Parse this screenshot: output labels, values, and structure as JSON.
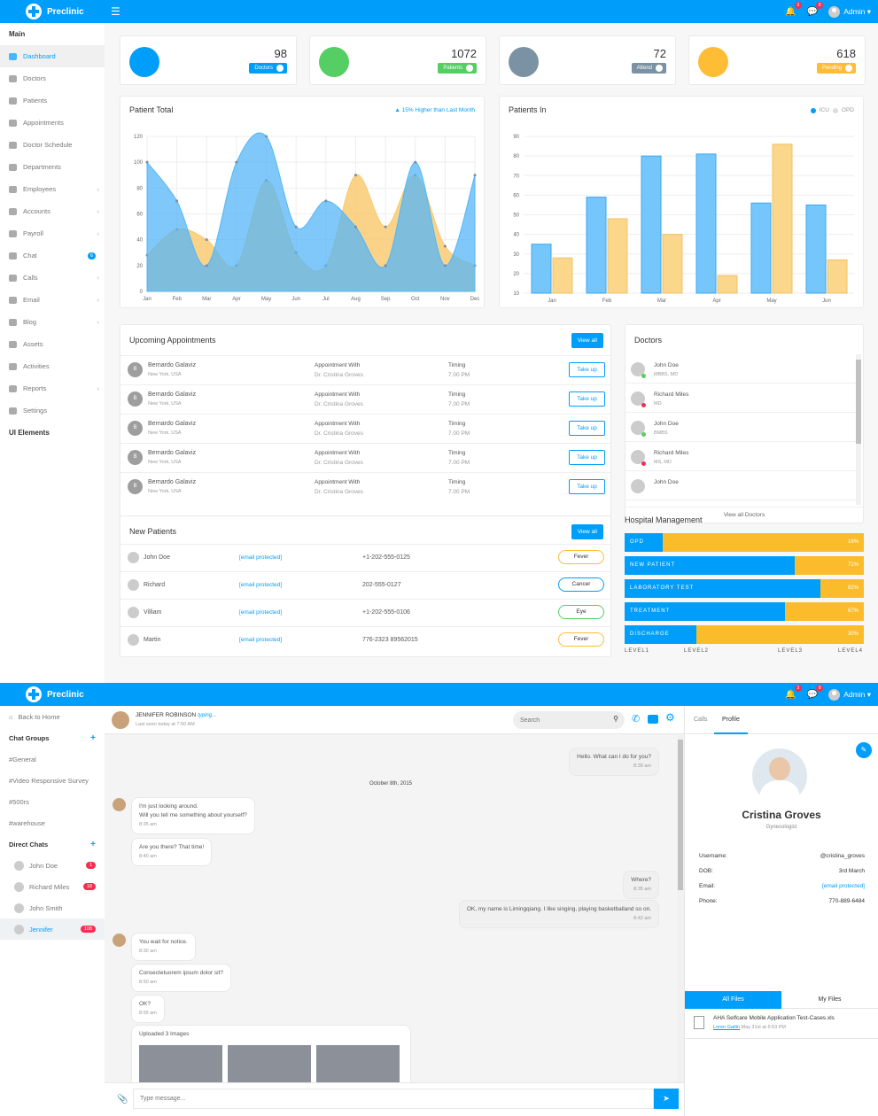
{
  "app": {
    "name": "Preclinic",
    "admin_label": "Admin",
    "notif_count": "3",
    "msg_count": "8"
  },
  "sidebar": {
    "main_label": "Main",
    "items": [
      {
        "label": "Dashboard",
        "active": true
      },
      {
        "label": "Doctors"
      },
      {
        "label": "Patients"
      },
      {
        "label": "Appointments"
      },
      {
        "label": "Doctor Schedule"
      },
      {
        "label": "Departments"
      },
      {
        "label": "Employees",
        "arrow": true
      },
      {
        "label": "Accounts",
        "arrow": true
      },
      {
        "label": "Payroll",
        "arrow": true
      },
      {
        "label": "Chat",
        "badge": "6"
      },
      {
        "label": "Calls",
        "arrow": true
      },
      {
        "label": "Email",
        "arrow": true
      },
      {
        "label": "Blog",
        "arrow": true
      },
      {
        "label": "Assets"
      },
      {
        "label": "Activities"
      },
      {
        "label": "Reports",
        "arrow": true
      },
      {
        "label": "Settings"
      }
    ],
    "ui_label": "UI Elements"
  },
  "stats": [
    {
      "value": "98",
      "label": "Doctors",
      "color": "#009efb"
    },
    {
      "value": "1072",
      "label": "Patients",
      "color": "#55ce63"
    },
    {
      "value": "72",
      "label": "Attend",
      "color": "#7a92a3"
    },
    {
      "value": "618",
      "label": "Pending",
      "color": "#ffbc35"
    }
  ],
  "patient_total": {
    "title": "Patient Total",
    "trend": "15% Higher than Last Month"
  },
  "patients_in": {
    "title": "Patients In",
    "legend": [
      "ICU",
      "OPD"
    ]
  },
  "chart_data": [
    {
      "type": "area",
      "title": "Patient Total",
      "categories": [
        "Jan",
        "Feb",
        "Mar",
        "Apr",
        "May",
        "Jun",
        "Jul",
        "Aug",
        "Sep",
        "Oct",
        "Nov",
        "Dec"
      ],
      "ylim": [
        0,
        120
      ],
      "yticks": [
        0,
        20,
        40,
        60,
        80,
        100,
        120
      ],
      "series": [
        {
          "values": [
            100,
            70,
            20,
            100,
            120,
            50,
            70,
            50,
            20,
            100,
            20,
            90
          ],
          "color": "#54b6f7"
        },
        {
          "values": [
            28,
            48,
            40,
            20,
            86,
            30,
            20,
            90,
            50,
            90,
            35,
            20
          ],
          "color": "#f9c86b"
        }
      ]
    },
    {
      "type": "bar",
      "title": "Patients In",
      "categories": [
        "Jan",
        "Feb",
        "Mar",
        "Apr",
        "May",
        "Jun"
      ],
      "ylim": [
        10,
        90
      ],
      "yticks": [
        10,
        20,
        30,
        40,
        50,
        60,
        70,
        80,
        90
      ],
      "series": [
        {
          "name": "ICU",
          "values": [
            35,
            59,
            80,
            81,
            56,
            55
          ],
          "color": "#75c7fb"
        },
        {
          "name": "OPD",
          "values": [
            28,
            48,
            40,
            19,
            86,
            27
          ],
          "color": "#fbd78b"
        }
      ]
    }
  ],
  "appointments": {
    "title": "Upcoming Appointments",
    "view_all": "View all",
    "rows": [
      {
        "initial": "B",
        "name": "Bernardo Galaviz",
        "location": "New York, USA",
        "with_label": "Appointment With",
        "doctor": "Dr. Cristina Groves",
        "timing_label": "Timing",
        "time": "7.00 PM",
        "action": "Take up"
      },
      {
        "initial": "B",
        "name": "Bernardo Galaviz",
        "location": "New York, USA",
        "with_label": "Appointment With",
        "doctor": "Dr. Cristina Groves",
        "timing_label": "Timing",
        "time": "7.00 PM",
        "action": "Take up"
      },
      {
        "initial": "B",
        "name": "Bernardo Galaviz",
        "location": "New York, USA",
        "with_label": "Appointment With",
        "doctor": "Dr. Cristina Groves",
        "timing_label": "Timing",
        "time": "7.00 PM",
        "action": "Take up"
      },
      {
        "initial": "B",
        "name": "Bernardo Galaviz",
        "location": "New York, USA",
        "with_label": "Appointment With",
        "doctor": "Dr. Cristina Groves",
        "timing_label": "Timing",
        "time": "7.00 PM",
        "action": "Take up"
      },
      {
        "initial": "B",
        "name": "Bernardo Galaviz",
        "location": "New York, USA",
        "with_label": "Appointment With",
        "doctor": "Dr. Cristina Groves",
        "timing_label": "Timing",
        "time": "7.00 PM",
        "action": "Take up"
      }
    ]
  },
  "doctors": {
    "title": "Doctors",
    "view_all": "View all Doctors",
    "items": [
      {
        "name": "John Doe",
        "degree": "MBBS, MD",
        "status": "#55ce63"
      },
      {
        "name": "Richard Miles",
        "degree": "MD",
        "status": "#f62d51"
      },
      {
        "name": "John Doe",
        "degree": "BMBS",
        "status": "#55ce63"
      },
      {
        "name": "Richard Miles",
        "degree": "MS, MD",
        "status": "#f62d51"
      },
      {
        "name": "John Doe",
        "degree": ""
      }
    ]
  },
  "new_patients": {
    "title": "New Patients",
    "view_all": "View all",
    "rows": [
      {
        "name": "John Doe",
        "email": "[email protected]",
        "phone": "+1-202-555-0125",
        "tag": "Fever",
        "color": "#ffbc35"
      },
      {
        "name": "Richard",
        "email": "[email protected]",
        "phone": "202-555-0127",
        "tag": "Cancer",
        "color": "#009efb"
      },
      {
        "name": "Villiam",
        "email": "[email protected]",
        "phone": "+1-202-555-0106",
        "tag": "Eye",
        "color": "#55ce63"
      },
      {
        "name": "Martin",
        "email": "[email protected]",
        "phone": "776-2323 89562015",
        "tag": "Fever",
        "color": "#ffbc35"
      }
    ]
  },
  "hospital": {
    "title": "Hospital Management",
    "bars": [
      {
        "label": "OPD",
        "pct": "16%",
        "fill": 0.16
      },
      {
        "label": "NEW PATIENT",
        "pct": "71%",
        "fill": 0.71
      },
      {
        "label": "LABORATORY TEST",
        "pct": "82%",
        "fill": 0.82
      },
      {
        "label": "TREATMENT",
        "pct": "67%",
        "fill": 0.67
      },
      {
        "label": "DISCHARGE",
        "pct": "30%",
        "fill": 0.3
      }
    ],
    "levels": [
      "LEVEL1",
      "LEVEL2",
      "LEVEL3",
      "LEVEL4"
    ]
  },
  "chat": {
    "side": {
      "back": "Back to Home",
      "groups_label": "Chat Groups",
      "groups": [
        "#General",
        "#Video Responsive Survey",
        "#500rs",
        "#warehouse"
      ],
      "direct_label": "Direct Chats",
      "direct": [
        {
          "name": "John Doe",
          "badge": "1"
        },
        {
          "name": "Richard Miles",
          "badge": "18"
        },
        {
          "name": "John Smith",
          "badge": ""
        },
        {
          "name": "Jennifer",
          "badge": "108",
          "active": true
        }
      ]
    },
    "header": {
      "name": "JENNIFER ROBINSON",
      "typing": "typing...",
      "last_seen": "Last seen today at 7:50 AM",
      "search_placeholder": "Search"
    },
    "date_divider": "October 8th, 2015",
    "messages": [
      {
        "side": "right",
        "text": "Hello. What can I do for you?",
        "time": "8:30 am"
      },
      {
        "side": "left",
        "lines": [
          "I'm just looking around.",
          "Will you tell me something about yourself?"
        ],
        "time": "8:35 am"
      },
      {
        "side": "left",
        "lines": [
          "Are you there? That time!"
        ],
        "time": "8:40 am"
      },
      {
        "side": "right",
        "text": "Where?",
        "time": "8:35 am"
      },
      {
        "side": "right",
        "text": "OK, my name is Limingqiang. I like singing, playing basketballand so on.",
        "time": "8:42 am"
      },
      {
        "side": "left",
        "lines": [
          "You wait for notice."
        ],
        "time": "8:30 am"
      },
      {
        "side": "left",
        "lines": [
          "Consectetuorem ipsum dolor sit?"
        ],
        "time": "8:50 am"
      },
      {
        "side": "left",
        "lines": [
          "OK?"
        ],
        "time": "8:55 am"
      }
    ],
    "uploaded_label": "Uploaded 3 Images",
    "input_placeholder": "Type message...",
    "profile": {
      "tabs": [
        "Calls",
        "Profile"
      ],
      "name": "Cristina Groves",
      "role": "Gynecologist",
      "fields": [
        {
          "k": "Username:",
          "v": "@cristina_groves"
        },
        {
          "k": "DOB:",
          "v": "3rd March"
        },
        {
          "k": "Email:",
          "v": "[email protected]"
        },
        {
          "k": "Phone:",
          "v": "770-889-6484"
        }
      ],
      "file_tabs": [
        "All Files",
        "My Files"
      ],
      "file": {
        "name": "AHA Selfcare Mobile Application Test-Cases.xls",
        "author": "Loren Gatlin",
        "date": "May 31st at 6:53 PM"
      }
    }
  }
}
